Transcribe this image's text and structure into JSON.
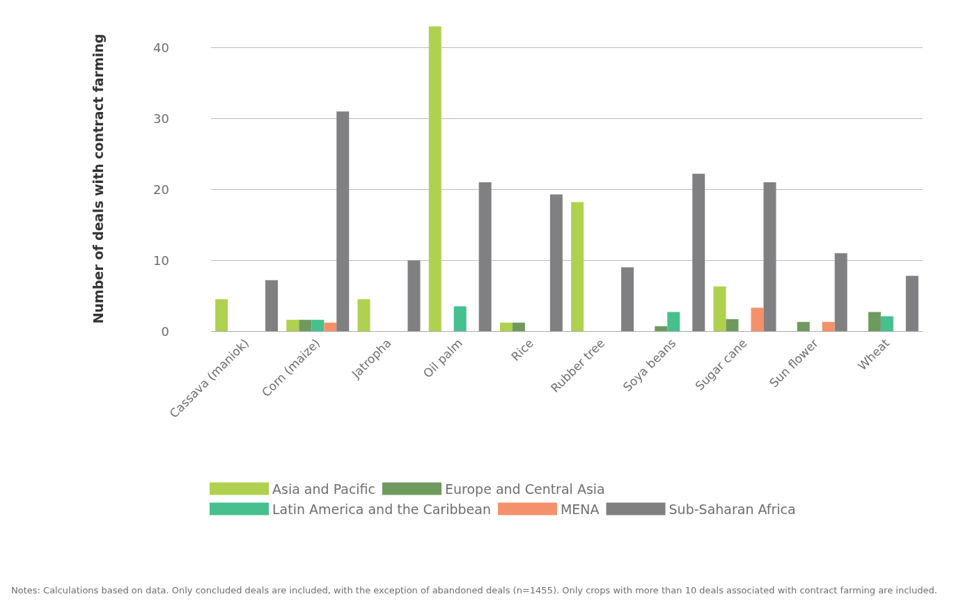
{
  "chart_data": {
    "type": "bar",
    "ylabel": "Number of deals with contract farming",
    "categories": [
      "Cassava (maniok)",
      "Corn (maize)",
      "Jatropha",
      "Oil palm",
      "Rice",
      "Rubber tree",
      "Soya beans",
      "Sugar cane",
      "Sun flower",
      "Wheat"
    ],
    "series": [
      {
        "name": "Asia and Pacific",
        "color": "#afd14f",
        "values": [
          4.5,
          1.6,
          4.5,
          43,
          1.2,
          18.2,
          null,
          6.3,
          null,
          null
        ]
      },
      {
        "name": "Europe and Central Asia",
        "color": "#6f9a5e",
        "values": [
          null,
          1.6,
          null,
          null,
          1.2,
          null,
          0.7,
          1.7,
          1.3,
          2.7
        ]
      },
      {
        "name": "Latin America and the Caribbean",
        "color": "#45c08e",
        "values": [
          null,
          1.6,
          null,
          3.5,
          null,
          null,
          2.7,
          null,
          null,
          2.1
        ]
      },
      {
        "name": "MENA",
        "color": "#f5916a",
        "values": [
          null,
          1.2,
          null,
          null,
          null,
          null,
          null,
          3.3,
          1.3,
          null
        ]
      },
      {
        "name": "Sub-Saharan Africa",
        "color": "#808083",
        "values": [
          7.2,
          31,
          10,
          21,
          19.3,
          9,
          22.2,
          21,
          11,
          7.8
        ]
      }
    ],
    "ylim": [
      0,
      43
    ],
    "yticks": [
      0,
      10,
      20,
      30,
      40
    ],
    "grid": "y",
    "legend": "bottom",
    "annotations": [
      "Notes: Calculations based on data. Only concluded deals are included, with the exception of abandoned deals (n=1455). Only crops with more than 10 deals associated with contract farming are included."
    ]
  }
}
